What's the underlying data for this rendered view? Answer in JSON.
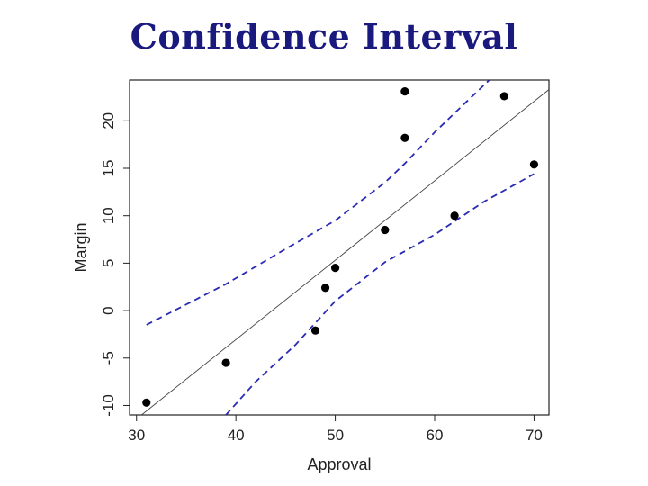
{
  "slide": {
    "title": "Confidence Interval"
  },
  "colors": {
    "title": "#1a1a7e",
    "points": "#000000",
    "fit_line": "#444444",
    "ci_band": "#2a2ab4"
  },
  "chart_data": {
    "type": "scatter",
    "title": "",
    "xlabel": "Approval",
    "ylabel": "Margin",
    "xlim": [
      29.3,
      71.5
    ],
    "ylim": [
      -11,
      24.3
    ],
    "x_ticks": [
      30,
      40,
      50,
      60,
      70
    ],
    "y_ticks": [
      -10,
      -5,
      0,
      5,
      10,
      15,
      20
    ],
    "points": [
      {
        "x": 31,
        "y": -9.7
      },
      {
        "x": 39,
        "y": -5.5
      },
      {
        "x": 48,
        "y": -2.1
      },
      {
        "x": 49,
        "y": 2.4
      },
      {
        "x": 50,
        "y": 4.5
      },
      {
        "x": 55,
        "y": 8.5
      },
      {
        "x": 57,
        "y": 18.2
      },
      {
        "x": 57,
        "y": 23.1
      },
      {
        "x": 62,
        "y": 10.0
      },
      {
        "x": 67,
        "y": 22.6
      },
      {
        "x": 70,
        "y": 15.4
      }
    ],
    "fit_line": {
      "x": [
        30.5,
        71.5
      ],
      "y": [
        -11.0,
        23.3
      ]
    },
    "ci_upper": {
      "x": [
        31,
        39,
        45,
        50,
        55,
        57,
        60,
        63,
        65.5
      ],
      "y": [
        -1.5,
        2.8,
        6.5,
        9.5,
        13.5,
        15.5,
        18.8,
        21.8,
        24.3
      ]
    },
    "ci_lower": {
      "x": [
        39,
        42,
        46,
        50,
        55,
        60,
        65,
        70
      ],
      "y": [
        -11.0,
        -7.5,
        -3.6,
        1.0,
        5.1,
        8.0,
        11.5,
        14.4
      ]
    }
  }
}
